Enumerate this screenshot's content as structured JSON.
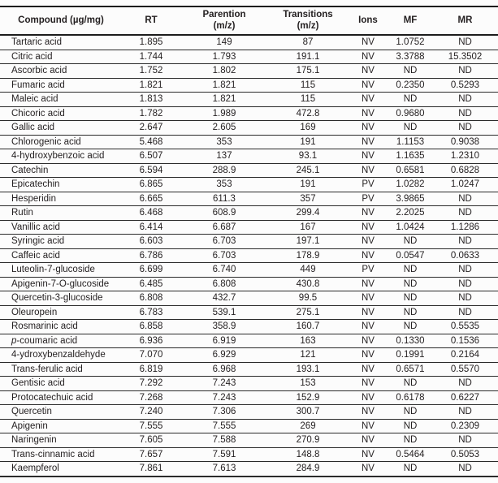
{
  "table": {
    "columns": [
      {
        "label": "Compound (µg/mg)",
        "sub": ""
      },
      {
        "label": "RT",
        "sub": ""
      },
      {
        "label": "Parention",
        "sub": "(m/z)"
      },
      {
        "label": "Transitions",
        "sub": "(m/z)"
      },
      {
        "label": "Ions",
        "sub": ""
      },
      {
        "label": "MF",
        "sub": ""
      },
      {
        "label": "MR",
        "sub": ""
      }
    ],
    "rows": [
      [
        "Tartaric acid",
        "1.895",
        "149",
        "87",
        "NV",
        "1.0752",
        "ND"
      ],
      [
        "Citric acid",
        "1.744",
        "1.793",
        "191.1",
        "NV",
        "3.3788",
        "15.3502"
      ],
      [
        "Ascorbic acid",
        "1.752",
        "1.802",
        "175.1",
        "NV",
        "ND",
        "ND"
      ],
      [
        "Fumaric acid",
        "1.821",
        "1.821",
        "115",
        "NV",
        "0.2350",
        "0.5293"
      ],
      [
        "Maleic acid",
        "1.813",
        "1.821",
        "115",
        "NV",
        "ND",
        "ND"
      ],
      [
        "Chicoric acid",
        "1.782",
        "1.989",
        "472.8",
        "NV",
        "0.9680",
        "ND"
      ],
      [
        "Gallic acid",
        "2.647",
        "2.605",
        "169",
        "NV",
        "ND",
        "ND"
      ],
      [
        "Chlorogenic acid",
        "5.468",
        "353",
        "191",
        "NV",
        "1.1153",
        "0.9038"
      ],
      [
        "4-hydroxybenzoic acid",
        "6.507",
        "137",
        "93.1",
        "NV",
        "1.1635",
        "1.2310"
      ],
      [
        "Catechin",
        "6.594",
        "288.9",
        "245.1",
        "NV",
        "0.6581",
        "0.6828"
      ],
      [
        "Epicatechin",
        "6.865",
        "353",
        "191",
        "PV",
        "1.0282",
        "1.0247"
      ],
      [
        "Hesperidin",
        "6.665",
        "611.3",
        "357",
        "PV",
        "3.9865",
        "ND"
      ],
      [
        "Rutin",
        "6.468",
        "608.9",
        "299.4",
        "NV",
        "2.2025",
        "ND"
      ],
      [
        "Vanillic acid",
        "6.414",
        "6.687",
        "167",
        "NV",
        "1.0424",
        "1.1286"
      ],
      [
        "Syringic acid",
        "6.603",
        "6.703",
        "197.1",
        "NV",
        "ND",
        "ND"
      ],
      [
        "Caffeic acid",
        "6.786",
        "6.703",
        "178.9",
        "NV",
        "0.0547",
        "0.0633"
      ],
      [
        "Luteolin-7-glucoside",
        "6.699",
        "6.740",
        "449",
        "PV",
        "ND",
        "ND"
      ],
      [
        "Apigenin-7-O-glucoside",
        "6.485",
        "6.808",
        "430.8",
        "NV",
        "ND",
        "ND"
      ],
      [
        "Quercetin-3-glucoside",
        "6.808",
        "432.7",
        "99.5",
        "NV",
        "ND",
        "ND"
      ],
      [
        "Oleuropein",
        "6.783",
        "539.1",
        "275.1",
        "NV",
        "ND",
        "ND"
      ],
      [
        "Rosmarinic acid",
        "6.858",
        "358.9",
        "160.7",
        "NV",
        "ND",
        "0.5535"
      ],
      [
        "p-coumaric acid",
        "6.936",
        "6.919",
        "163",
        "NV",
        "0.1330",
        "0.1536"
      ],
      [
        "4-ydroxybenzaldehyde",
        "7.070",
        "6.929",
        "121",
        "NV",
        "0.1991",
        "0.2164"
      ],
      [
        "Trans-ferulic acid",
        "6.819",
        "6.968",
        "193.1",
        "NV",
        "0.6571",
        "0.5570"
      ],
      [
        "Gentisic acid",
        "7.292",
        "7.243",
        "153",
        "NV",
        "ND",
        "ND"
      ],
      [
        "Protocatechuic acid",
        "7.268",
        "7.243",
        "152.9",
        "NV",
        "0.6178",
        "0.6227"
      ],
      [
        "Quercetin",
        "7.240",
        "7.306",
        "300.7",
        "NV",
        "ND",
        "ND"
      ],
      [
        "Apigenin",
        "7.555",
        "7.555",
        "269",
        "NV",
        "ND",
        "0.2309"
      ],
      [
        "Naringenin",
        "7.605",
        "7.588",
        "270.9",
        "NV",
        "ND",
        "ND"
      ],
      [
        "Trans-cinnamic acid",
        "7.657",
        "7.591",
        "148.8",
        "NV",
        "0.5464",
        "0.5053"
      ],
      [
        "Kaempferol",
        "7.861",
        "7.613",
        "284.9",
        "NV",
        "ND",
        "ND"
      ]
    ]
  }
}
